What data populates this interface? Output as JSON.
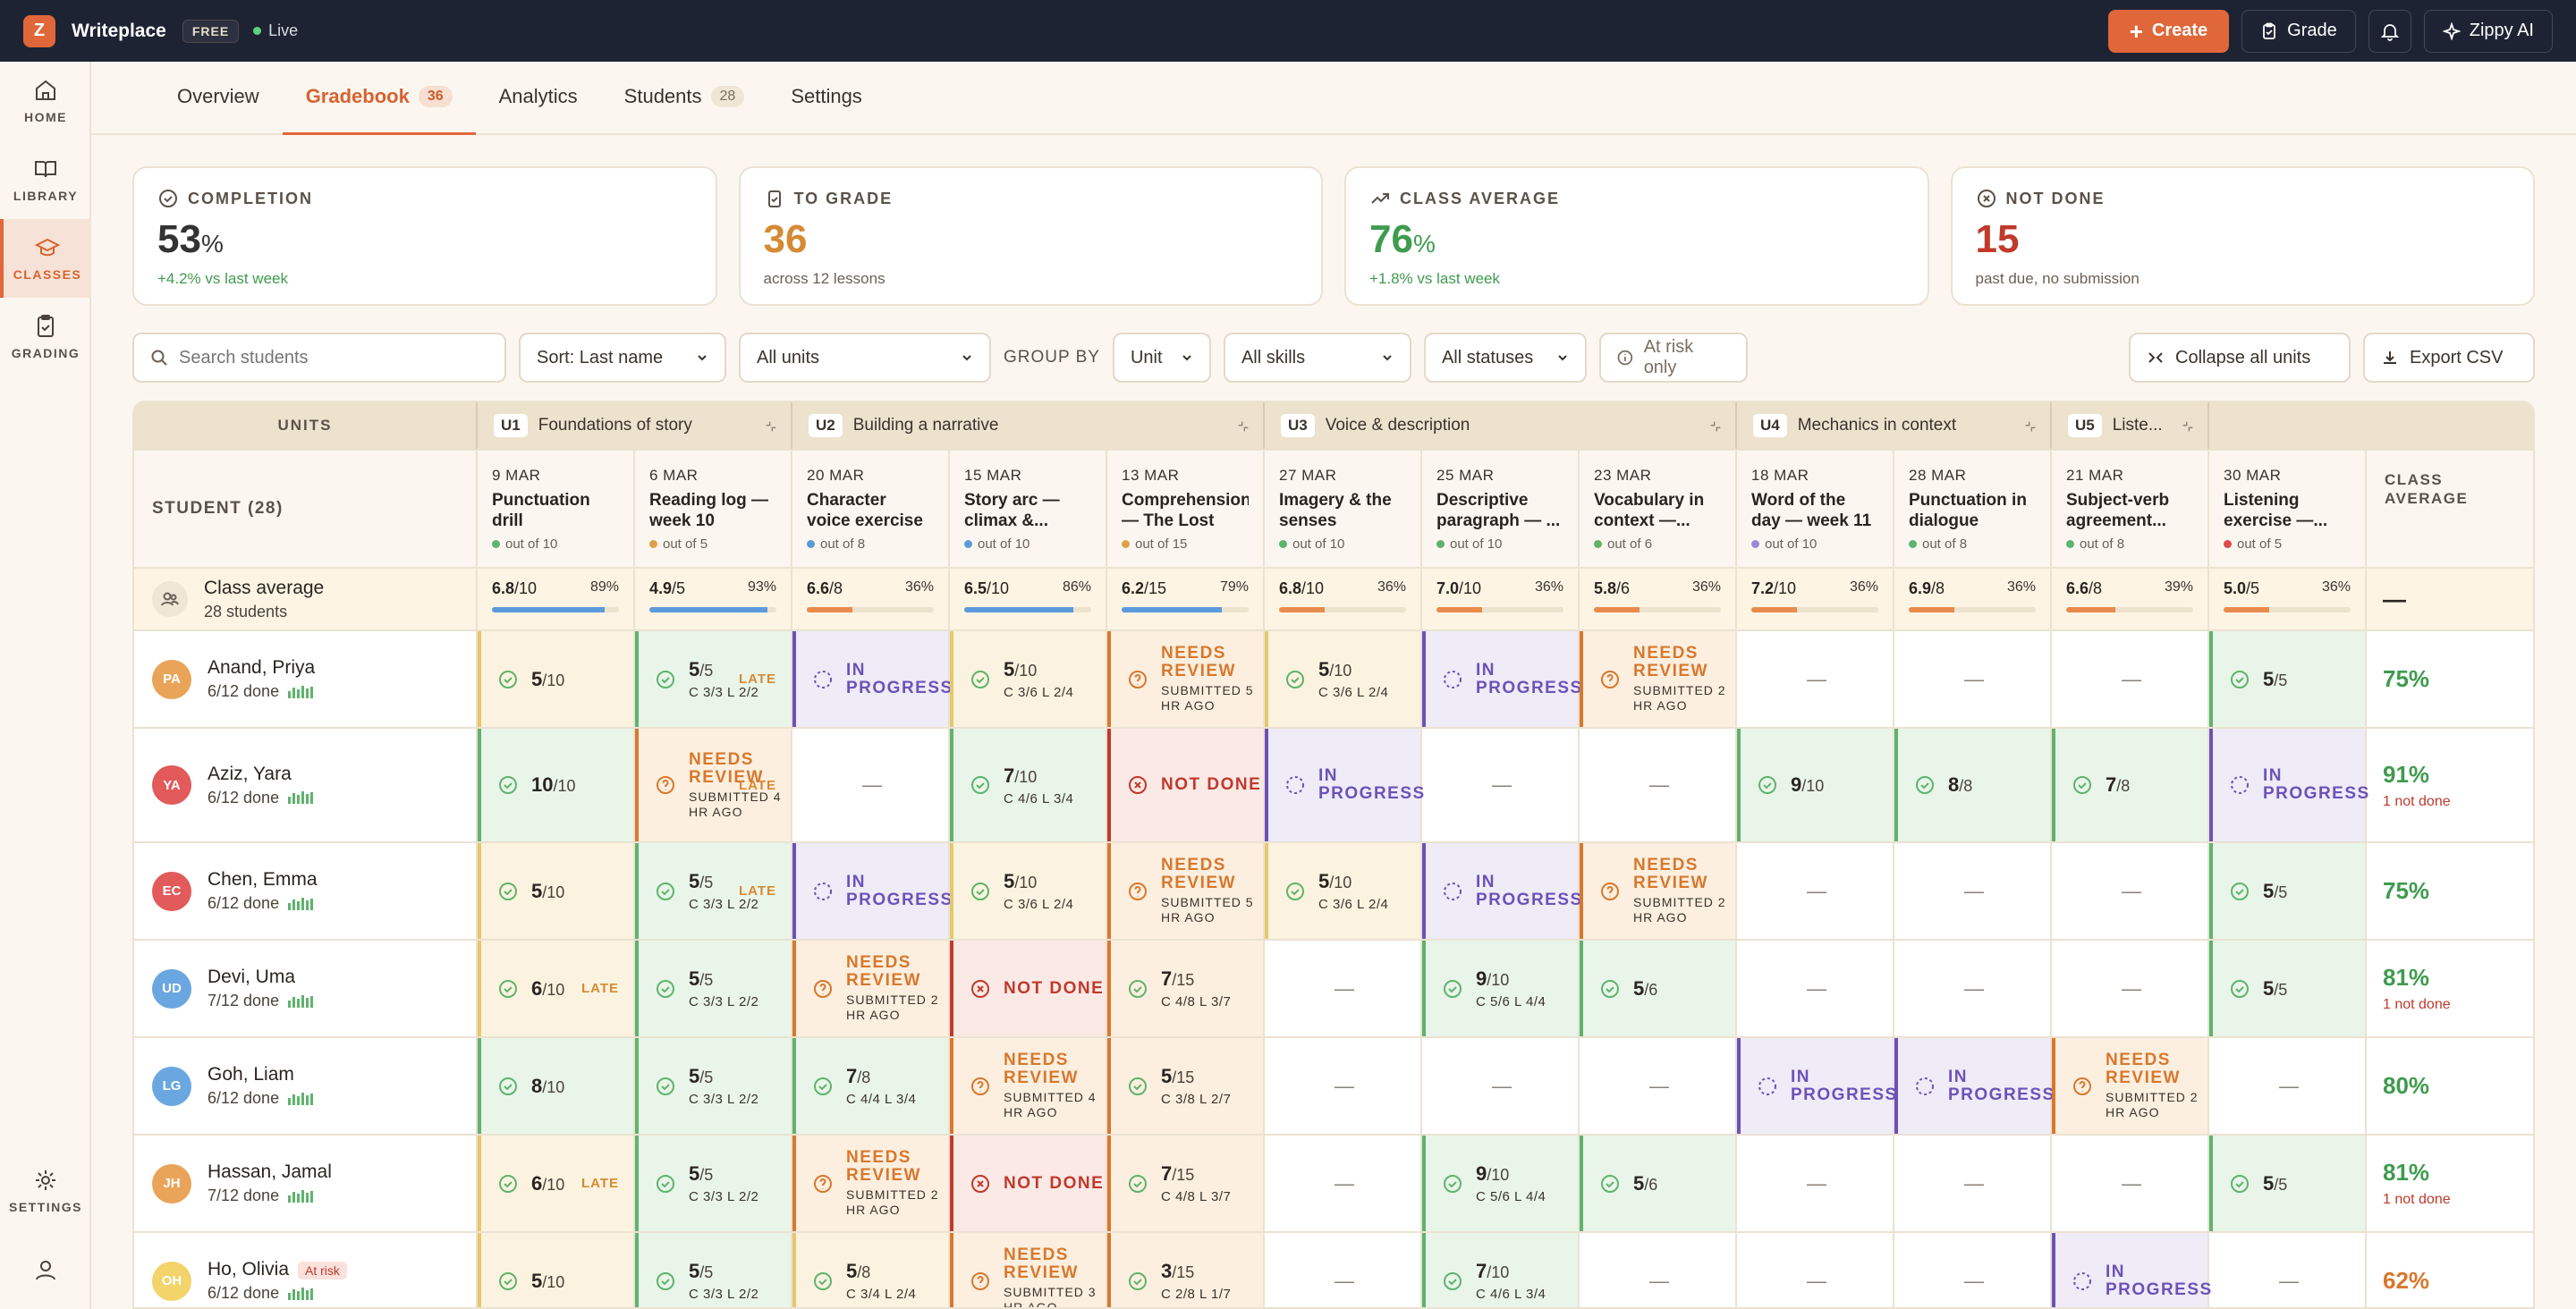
{
  "app": {
    "logo": "Z",
    "name": "Writeplace",
    "plan": "FREE",
    "status": "Live"
  },
  "top_actions": {
    "create": "Create",
    "grade": "Grade",
    "ai": "Zippy AI"
  },
  "rail": {
    "home": "HOME",
    "library": "LIBRARY",
    "classes": "CLASSES",
    "grading": "GRADING",
    "settings": "SETTINGS"
  },
  "tabs": [
    {
      "label": "Overview"
    },
    {
      "label": "Gradebook",
      "count": "36"
    },
    {
      "label": "Analytics"
    },
    {
      "label": "Students",
      "count": "28"
    },
    {
      "label": "Settings"
    }
  ],
  "stats": [
    {
      "label": "COMPLETION",
      "value": "53",
      "unit": "%",
      "sub": "+4.2% vs last week",
      "color": "#333333",
      "subcolor": "#3f9b4f"
    },
    {
      "label": "TO GRADE",
      "value": "36",
      "unit": "",
      "sub": "across 12 lessons",
      "color": "#d58a33",
      "subcolor": "#6a6058"
    },
    {
      "label": "CLASS AVERAGE",
      "value": "76",
      "unit": "%",
      "sub": "+1.8% vs last week",
      "color": "#3f9b4f",
      "subcolor": "#3f9b4f"
    },
    {
      "label": "NOT DONE",
      "value": "15",
      "unit": "",
      "sub": "past due, no submission",
      "color": "#c0392b",
      "subcolor": "#6a6058"
    }
  ],
  "filters": {
    "search_placeholder": "Search students",
    "sort": "Sort: Last name",
    "units": "All units",
    "group_by_label": "GROUP BY",
    "group_by": "Unit",
    "skills": "All skills",
    "statuses": "All statuses",
    "at_risk": "At risk only",
    "collapse": "Collapse all units",
    "export": "Export CSV"
  },
  "grid": {
    "units_label": "UNITS",
    "student_label": "STUDENT (28)",
    "class_avg_label": "CLASS AVERAGE",
    "class_avg_row": {
      "title": "Class average",
      "sub": "28 students",
      "final": "—"
    },
    "units": [
      {
        "code": "U1",
        "name": "Foundations of story",
        "span": 2
      },
      {
        "code": "U2",
        "name": "Building a narrative",
        "span": 3
      },
      {
        "code": "U3",
        "name": "Voice & description",
        "span": 3
      },
      {
        "code": "U4",
        "name": "Mechanics in context",
        "span": 2
      },
      {
        "code": "U5",
        "name": "Liste...",
        "span": 1
      }
    ],
    "lessons": [
      {
        "date": "9 MAR",
        "title": "Punctuation drill",
        "out": "out of 10",
        "dot": "#5fb36e",
        "avg": "6.8",
        "max": "/10",
        "pct": "89%",
        "fill": 0.89,
        "bar": "#5b9bdb"
      },
      {
        "date": "6 MAR",
        "title": "Reading log — week 10",
        "out": "out of 5",
        "dot": "#e0a04a",
        "avg": "4.9",
        "max": "/5",
        "pct": "93%",
        "fill": 0.93,
        "bar": "#5b9bdb"
      },
      {
        "date": "20 MAR",
        "title": "Character voice exercise",
        "out": "out of 8",
        "dot": "#5b9bdb",
        "avg": "6.6",
        "max": "/8",
        "pct": "36%",
        "fill": 0.36,
        "bar": "#e98b4c"
      },
      {
        "date": "15 MAR",
        "title": "Story arc — climax &...",
        "out": "out of 10",
        "dot": "#5b9bdb",
        "avg": "6.5",
        "max": "/10",
        "pct": "86%",
        "fill": 0.86,
        "bar": "#5b9bdb"
      },
      {
        "date": "13 MAR",
        "title": "Comprehension — The Lost Key",
        "out": "out of 15",
        "dot": "#e0a04a",
        "avg": "6.2",
        "max": "/15",
        "pct": "79%",
        "fill": 0.79,
        "bar": "#5b9bdb"
      },
      {
        "date": "27 MAR",
        "title": "Imagery & the senses",
        "out": "out of 10",
        "dot": "#5fb36e",
        "avg": "6.8",
        "max": "/10",
        "pct": "36%",
        "fill": 0.36,
        "bar": "#e98b4c"
      },
      {
        "date": "25 MAR",
        "title": "Descriptive paragraph — ...",
        "out": "out of 10",
        "dot": "#5fb36e",
        "avg": "7.0",
        "max": "/10",
        "pct": "36%",
        "fill": 0.36,
        "bar": "#e98b4c"
      },
      {
        "date": "23 MAR",
        "title": "Vocabulary in context —...",
        "out": "out of 6",
        "dot": "#5fb36e",
        "avg": "5.8",
        "max": "/6",
        "pct": "36%",
        "fill": 0.36,
        "bar": "#e98b4c"
      },
      {
        "date": "18 MAR",
        "title": "Word of the day — week 11",
        "out": "out of 10",
        "dot": "#9a8ad6",
        "avg": "7.2",
        "max": "/10",
        "pct": "36%",
        "fill": 0.36,
        "bar": "#e98b4c"
      },
      {
        "date": "28 MAR",
        "title": "Punctuation in dialogue",
        "out": "out of 8",
        "dot": "#5fb36e",
        "avg": "6.9",
        "max": "/8",
        "pct": "36%",
        "fill": 0.36,
        "bar": "#e98b4c"
      },
      {
        "date": "21 MAR",
        "title": "Subject-verb agreement...",
        "out": "out of 8",
        "dot": "#5fb36e",
        "avg": "6.6",
        "max": "/8",
        "pct": "39%",
        "fill": 0.39,
        "bar": "#e98b4c"
      },
      {
        "date": "30 MAR",
        "title": "Listening exercise —...",
        "out": "out of 5",
        "dot": "#e04a4a",
        "avg": "5.0",
        "max": "/5",
        "pct": "36%",
        "fill": 0.36,
        "bar": "#e98b4c"
      }
    ],
    "students": [
      {
        "initials": "PA",
        "name": "Anand, Priya",
        "done": "6/12 done",
        "color": "#e9a45a",
        "risk": "",
        "avg": "75%",
        "avg_color": "#3f9b4f",
        "note": "",
        "tall": false,
        "cells": [
          {
            "s": "part",
            "v": "5",
            "m": "/10"
          },
          {
            "s": "done",
            "v": "5",
            "m": "/5",
            "c": "C 3/3",
            "l": "L 2/2",
            "late": "LATE"
          },
          {
            "s": "prog",
            "t": "IN PROGRESS"
          },
          {
            "s": "part",
            "v": "5",
            "m": "/10",
            "c": "C 3/6",
            "l": "L 2/4"
          },
          {
            "s": "rev",
            "t": "NEEDS REVIEW",
            "sub": "SUBMITTED 5 HR AGO"
          },
          {
            "s": "part",
            "v": "5",
            "m": "/10",
            "c": "C 3/6",
            "l": "L 2/4"
          },
          {
            "s": "prog",
            "t": "IN PROGRESS"
          },
          {
            "s": "rev",
            "t": "NEEDS REVIEW",
            "sub": "SUBMITTED 2 HR AGO"
          },
          {
            "s": "empty",
            "t": "—"
          },
          {
            "s": "empty",
            "t": "—"
          },
          {
            "s": "empty",
            "t": "—"
          },
          {
            "s": "done",
            "v": "5",
            "m": "/5"
          }
        ]
      },
      {
        "initials": "YA",
        "name": "Aziz, Yara",
        "done": "6/12 done",
        "color": "#e25a5a",
        "risk": "",
        "avg": "91%",
        "avg_color": "#3f9b4f",
        "note": "1 not done",
        "tall": true,
        "cells": [
          {
            "s": "done",
            "v": "10",
            "m": "/10"
          },
          {
            "s": "rev",
            "t": "NEEDS REVIEW",
            "sub": "SUBMITTED 4 HR AGO",
            "late": "LATE"
          },
          {
            "s": "empty",
            "t": "—"
          },
          {
            "s": "done",
            "v": "7",
            "m": "/10",
            "c": "C 4/6",
            "l": "L 3/4"
          },
          {
            "s": "not",
            "t": "NOT DONE"
          },
          {
            "s": "prog",
            "t": "IN PROGRESS"
          },
          {
            "s": "empty",
            "t": "—"
          },
          {
            "s": "empty",
            "t": "—"
          },
          {
            "s": "done",
            "v": "9",
            "m": "/10"
          },
          {
            "s": "done",
            "v": "8",
            "m": "/8"
          },
          {
            "s": "done",
            "v": "7",
            "m": "/8"
          },
          {
            "s": "prog",
            "t": "IN PROGRESS"
          }
        ]
      },
      {
        "initials": "EC",
        "name": "Chen, Emma",
        "done": "6/12 done",
        "color": "#e25a5a",
        "risk": "",
        "avg": "75%",
        "avg_color": "#3f9b4f",
        "note": "",
        "tall": false,
        "cells": [
          {
            "s": "part",
            "v": "5",
            "m": "/10"
          },
          {
            "s": "done",
            "v": "5",
            "m": "/5",
            "c": "C 3/3",
            "l": "L 2/2",
            "late": "LATE"
          },
          {
            "s": "prog",
            "t": "IN PROGRESS"
          },
          {
            "s": "part",
            "v": "5",
            "m": "/10",
            "c": "C 3/6",
            "l": "L 2/4"
          },
          {
            "s": "rev",
            "t": "NEEDS REVIEW",
            "sub": "SUBMITTED 5 HR AGO"
          },
          {
            "s": "part",
            "v": "5",
            "m": "/10",
            "c": "C 3/6",
            "l": "L 2/4"
          },
          {
            "s": "prog",
            "t": "IN PROGRESS"
          },
          {
            "s": "rev",
            "t": "NEEDS REVIEW",
            "sub": "SUBMITTED 2 HR AGO"
          },
          {
            "s": "empty",
            "t": "—"
          },
          {
            "s": "empty",
            "t": "—"
          },
          {
            "s": "empty",
            "t": "—"
          },
          {
            "s": "done",
            "v": "5",
            "m": "/5"
          }
        ]
      },
      {
        "initials": "UD",
        "name": "Devi, Uma",
        "done": "7/12 done",
        "color": "#6aa7e0",
        "risk": "",
        "avg": "81%",
        "avg_color": "#3f9b4f",
        "note": "1 not done",
        "tall": false,
        "cells": [
          {
            "s": "part",
            "v": "6",
            "m": "/10",
            "late": "LATE"
          },
          {
            "s": "done",
            "v": "5",
            "m": "/5",
            "c": "C 3/3",
            "l": "L 2/2"
          },
          {
            "s": "rev",
            "t": "NEEDS REVIEW",
            "sub": "SUBMITTED 2 HR AGO"
          },
          {
            "s": "not",
            "t": "NOT DONE"
          },
          {
            "s": "rev2",
            "v": "7",
            "m": "/15",
            "c": "C 4/8",
            "l": "L 3/7"
          },
          {
            "s": "empty",
            "t": "—"
          },
          {
            "s": "done",
            "v": "9",
            "m": "/10",
            "c": "C 5/6",
            "l": "L 4/4"
          },
          {
            "s": "done",
            "v": "5",
            "m": "/6"
          },
          {
            "s": "empty",
            "t": "—"
          },
          {
            "s": "empty",
            "t": "—"
          },
          {
            "s": "empty",
            "t": "—"
          },
          {
            "s": "done",
            "v": "5",
            "m": "/5"
          }
        ]
      },
      {
        "initials": "LG",
        "name": "Goh, Liam",
        "done": "6/12 done",
        "color": "#6aa7e0",
        "risk": "",
        "avg": "80%",
        "avg_color": "#3f9b4f",
        "note": "",
        "tall": false,
        "cells": [
          {
            "s": "done",
            "v": "8",
            "m": "/10"
          },
          {
            "s": "done",
            "v": "5",
            "m": "/5",
            "c": "C 3/3",
            "l": "L 2/2"
          },
          {
            "s": "done",
            "v": "7",
            "m": "/8",
            "c": "C 4/4",
            "l": "L 3/4"
          },
          {
            "s": "rev",
            "t": "NEEDS REVIEW",
            "sub": "SUBMITTED 4 HR AGO"
          },
          {
            "s": "rev2",
            "v": "5",
            "m": "/15",
            "c": "C 3/8",
            "l": "L 2/7"
          },
          {
            "s": "empty",
            "t": "—"
          },
          {
            "s": "empty",
            "t": "—"
          },
          {
            "s": "empty",
            "t": "—"
          },
          {
            "s": "prog",
            "t": "IN PROGRESS"
          },
          {
            "s": "prog",
            "t": "IN PROGRESS"
          },
          {
            "s": "rev",
            "t": "NEEDS REVIEW",
            "sub": "SUBMITTED 2 HR AGO"
          },
          {
            "s": "empty",
            "t": "—"
          }
        ]
      },
      {
        "initials": "JH",
        "name": "Hassan, Jamal",
        "done": "7/12 done",
        "color": "#e9a45a",
        "risk": "",
        "avg": "81%",
        "avg_color": "#3f9b4f",
        "note": "1 not done",
        "tall": false,
        "cells": [
          {
            "s": "part",
            "v": "6",
            "m": "/10",
            "late": "LATE"
          },
          {
            "s": "done",
            "v": "5",
            "m": "/5",
            "c": "C 3/3",
            "l": "L 2/2"
          },
          {
            "s": "rev",
            "t": "NEEDS REVIEW",
            "sub": "SUBMITTED 2 HR AGO"
          },
          {
            "s": "not",
            "t": "NOT DONE"
          },
          {
            "s": "rev2",
            "v": "7",
            "m": "/15",
            "c": "C 4/8",
            "l": "L 3/7"
          },
          {
            "s": "empty",
            "t": "—"
          },
          {
            "s": "done",
            "v": "9",
            "m": "/10",
            "c": "C 5/6",
            "l": "L 4/4"
          },
          {
            "s": "done",
            "v": "5",
            "m": "/6"
          },
          {
            "s": "empty",
            "t": "—"
          },
          {
            "s": "empty",
            "t": "—"
          },
          {
            "s": "empty",
            "t": "—"
          },
          {
            "s": "done",
            "v": "5",
            "m": "/5"
          }
        ]
      },
      {
        "initials": "OH",
        "name": "Ho, Olivia",
        "done": "6/12 done",
        "color": "#f2d46a",
        "risk": "At risk",
        "avg": "62%",
        "avg_color": "#d8782d",
        "note": "",
        "tall": false,
        "cells": [
          {
            "s": "part",
            "v": "5",
            "m": "/10"
          },
          {
            "s": "done",
            "v": "5",
            "m": "/5",
            "c": "C 3/3",
            "l": "L 2/2"
          },
          {
            "s": "part",
            "v": "5",
            "m": "/8",
            "c": "C 3/4",
            "l": "L 2/4"
          },
          {
            "s": "rev",
            "t": "NEEDS REVIEW",
            "sub": "SUBMITTED 3 HR AGO"
          },
          {
            "s": "rev2",
            "v": "3",
            "m": "/15",
            "c": "C 2/8",
            "l": "L 1/7"
          },
          {
            "s": "empty",
            "t": "—"
          },
          {
            "s": "done",
            "v": "7",
            "m": "/10",
            "c": "C 4/6",
            "l": "L 3/4"
          },
          {
            "s": "empty",
            "t": "—"
          },
          {
            "s": "empty",
            "t": "—"
          },
          {
            "s": "empty",
            "t": "—"
          },
          {
            "s": "prog",
            "t": "IN PROGRESS"
          },
          {
            "s": "empty",
            "t": "—"
          }
        ]
      }
    ]
  }
}
